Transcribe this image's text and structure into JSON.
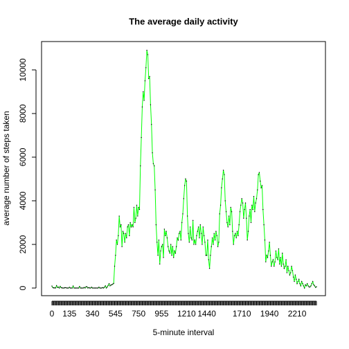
{
  "chart_data": {
    "type": "line",
    "title": "The average daily activity",
    "x_label": "5-minute interval",
    "y_label": "average number of steps taken",
    "categories": [
      "0",
      null,
      null,
      null,
      null,
      null,
      null,
      null,
      null,
      null,
      null,
      null,
      null,
      null,
      null,
      null,
      null,
      null,
      null,
      "135",
      null,
      null,
      null,
      null,
      null,
      null,
      null,
      null,
      null,
      null,
      null,
      null,
      null,
      null,
      null,
      null,
      null,
      null,
      null,
      null,
      null,
      null,
      null,
      null,
      "340",
      null,
      null,
      null,
      null,
      null,
      null,
      null,
      null,
      null,
      null,
      null,
      null,
      null,
      null,
      null,
      null,
      null,
      null,
      null,
      null,
      null,
      null,
      null,
      null,
      "545",
      null,
      null,
      null,
      null,
      null,
      null,
      null,
      null,
      null,
      null,
      null,
      null,
      null,
      null,
      null,
      null,
      null,
      null,
      null,
      null,
      null,
      null,
      null,
      null,
      "750",
      null,
      null,
      null,
      null,
      null,
      null,
      null,
      null,
      null,
      null,
      null,
      null,
      null,
      null,
      null,
      null,
      null,
      null,
      null,
      null,
      null,
      null,
      null,
      null,
      "955",
      null,
      null,
      null,
      null,
      null,
      null,
      null,
      null,
      null,
      null,
      null,
      null,
      null,
      null,
      null,
      null,
      null,
      null,
      null,
      null,
      null,
      null,
      null,
      null,
      null,
      null,
      "1210",
      null,
      null,
      null,
      null,
      null,
      null,
      null,
      null,
      null,
      null,
      null,
      null,
      null,
      null,
      null,
      null,
      null,
      null,
      null,
      null,
      null,
      "1440",
      null,
      null,
      null,
      null,
      null,
      null,
      null,
      null,
      null,
      null,
      null,
      null,
      null,
      null,
      null,
      null,
      null,
      null,
      null,
      null,
      null,
      null,
      null,
      null,
      null,
      null,
      null,
      null,
      null,
      null,
      null,
      null,
      null,
      null,
      null,
      null,
      null,
      "1710",
      null,
      null,
      null,
      null,
      null,
      null,
      null,
      null,
      null,
      null,
      null,
      null,
      null,
      null,
      null,
      null,
      null,
      null,
      null,
      null,
      null,
      null,
      null,
      null,
      null,
      null,
      null,
      null,
      null,
      "1940",
      null,
      null,
      null,
      null,
      null,
      null,
      null,
      null,
      null,
      null,
      null,
      null,
      null,
      null,
      null,
      null,
      null,
      null,
      null,
      null,
      null,
      null,
      null,
      null,
      null,
      null,
      null,
      null,
      null,
      "2210",
      null,
      null,
      null,
      null,
      null,
      null,
      null,
      null,
      null,
      null,
      null,
      null,
      null,
      null,
      null,
      null,
      null,
      null,
      null,
      null,
      null
    ],
    "values": [
      91,
      18,
      7,
      8,
      4,
      111,
      28,
      46,
      0,
      78,
      16,
      7,
      0,
      0,
      15,
      18,
      0,
      0,
      0,
      38,
      0,
      0,
      0,
      94,
      0,
      0,
      0,
      0,
      0,
      0,
      72,
      0,
      0,
      0,
      0,
      30,
      0,
      60,
      60,
      0,
      20,
      0,
      0,
      40,
      0,
      0,
      0,
      0,
      0,
      0,
      0,
      40,
      0,
      0,
      0,
      20,
      0,
      40,
      100,
      0,
      50,
      120,
      200,
      100,
      140,
      150,
      180,
      210,
      1000,
      1500,
      2200,
      2000,
      2400,
      3300,
      2800,
      2900,
      1900,
      2600,
      2500,
      2100,
      2500,
      2300,
      2800,
      2900,
      2400,
      3000,
      2800,
      2900,
      2800,
      3700,
      3000,
      3200,
      3800,
      3300,
      3700,
      3600,
      5600,
      6900,
      8300,
      9000,
      8600,
      9500,
      10100,
      10900,
      10700,
      9600,
      9700,
      8400,
      7500,
      6200,
      5700,
      5600,
      4500,
      2900,
      2100,
      1500,
      2200,
      1100,
      1700,
      1900,
      2000,
      1400,
      2700,
      2400,
      2600,
      2300,
      1900,
      1700,
      1600,
      2000,
      1500,
      1900,
      1400,
      1700,
      1600,
      1900,
      2300,
      2200,
      2500,
      2600,
      2200,
      3000,
      3400,
      4100,
      4700,
      5000,
      4900,
      3300,
      2500,
      2100,
      2800,
      2300,
      2200,
      3100,
      2000,
      2200,
      2000,
      2400,
      2600,
      2800,
      2300,
      2900,
      2500,
      2000,
      2800,
      2400,
      2100,
      1500,
      1500,
      2200,
      1300,
      900,
      1500,
      1900,
      2300,
      2000,
      2500,
      2200,
      2600,
      2400,
      1900,
      2100,
      3400,
      3800,
      4600,
      5000,
      5400,
      5200,
      4000,
      3500,
      3000,
      2800,
      3300,
      2900,
      3700,
      3500,
      2600,
      2000,
      2400,
      2500,
      2300,
      2600,
      2400,
      2900,
      3500,
      3800,
      4100,
      3900,
      3200,
      3600,
      3900,
      3200,
      2200,
      2600,
      3300,
      3600,
      3000,
      3800,
      3600,
      4200,
      3500,
      3900,
      4100,
      4500,
      5200,
      5300,
      4900,
      4600,
      4700,
      3600,
      2900,
      2200,
      1200,
      1500,
      1400,
      1700,
      2100,
      1500,
      1000,
      1200,
      1300,
      1000,
      1200,
      1700,
      1400,
      1300,
      1800,
      1100,
      1400,
      1000,
      1600,
      1100,
      900,
      1000,
      1300,
      700,
      1000,
      800,
      600,
      700,
      1000,
      800,
      500,
      300,
      600,
      400,
      200,
      300,
      400,
      200,
      100,
      300,
      200,
      100,
      0,
      150,
      100,
      200,
      100,
      50,
      50,
      100,
      200,
      300,
      150,
      100,
      30,
      60
    ],
    "color": "#00ff00",
    "ylim": [
      -350,
      11300
    ],
    "yticks": [
      0,
      2000,
      4000,
      6000,
      8000,
      10000
    ]
  }
}
